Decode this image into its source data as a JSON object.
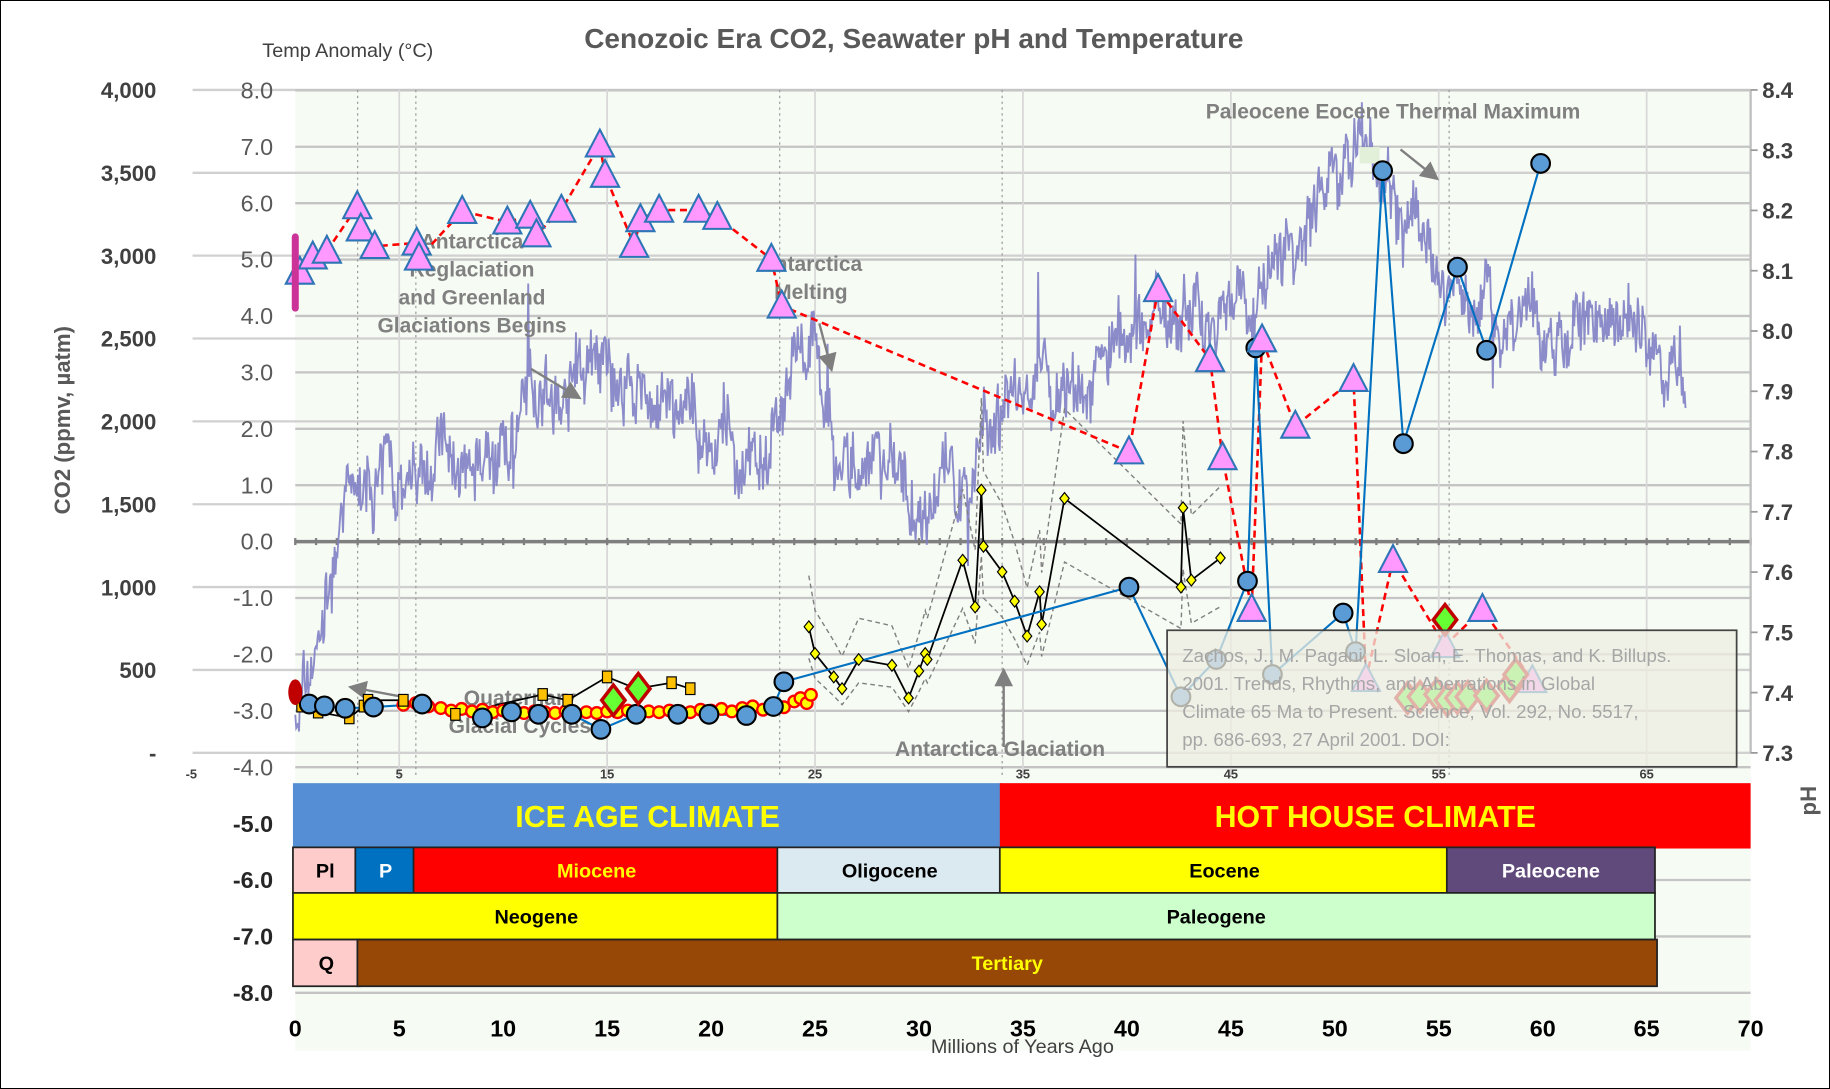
{
  "chart_data": {
    "type": "scatter",
    "title": "Cenozoic Era CO2, Seawater pH and Temperature",
    "xlabel": "Millions of Years Ago",
    "ylabel_left": "CO2 (ppmv, µatm)",
    "ylabel_temp": "Temp Anomaly (°C)",
    "ylabel_right": "pH",
    "xlim": [
      0,
      70
    ],
    "x_ticks": [
      "0",
      "5",
      "10",
      "15",
      "20",
      "25",
      "30",
      "35",
      "40",
      "45",
      "50",
      "55",
      "60",
      "65",
      "70"
    ],
    "x_secondary_ticks": [
      "-5",
      "5",
      "15",
      "25",
      "35",
      "45",
      "55",
      "65"
    ],
    "co2_lim": [
      0,
      4000
    ],
    "co2_ticks": [
      "-",
      "500",
      "1,000",
      "1,500",
      "2,000",
      "2,500",
      "3,000",
      "3,500",
      "4,000"
    ],
    "temp_lim": [
      -8,
      8
    ],
    "temp_ticks": [
      "8.0",
      "7.0",
      "6.0",
      "5.0",
      "4.0",
      "3.0",
      "2.0",
      "1.0",
      "0.0",
      "-1.0",
      "-2.0",
      "-3.0",
      "-4.0",
      "-5.0",
      "-6.0",
      "-7.0",
      "-8.0"
    ],
    "ph_lim": [
      7.3,
      8.4
    ],
    "ph_ticks": [
      "8.4",
      "8.3",
      "8.2",
      "8.1",
      "8.0",
      "7.9",
      "7.8",
      "7.7",
      "7.6",
      "7.5",
      "7.4",
      "7.3"
    ],
    "grid": true,
    "series": [
      {
        "name": "Temperature anomaly trend (Zachos)",
        "axis": "temp",
        "style": "noisy-line",
        "color": "#8080c4",
        "points": [
          [
            0,
            -3.2
          ],
          [
            0.95,
            -2.0
          ],
          [
            2.6,
            0.9
          ],
          [
            4.9,
            1.3
          ],
          [
            9.4,
            1.7
          ],
          [
            12.7,
            2.8
          ],
          [
            13.9,
            3.4
          ],
          [
            15.0,
            3.2
          ],
          [
            17.2,
            2.1
          ],
          [
            19.5,
            1.7
          ],
          [
            22.9,
            1.7
          ],
          [
            24.0,
            3.2
          ],
          [
            25.1,
            2.8
          ],
          [
            26.2,
            1.3
          ],
          [
            28.5,
            1.1
          ],
          [
            32.4,
            1.1
          ],
          [
            34.1,
            2.6
          ],
          [
            36.3,
            2.4
          ],
          [
            39.7,
            3.4
          ],
          [
            41.4,
            4.2
          ],
          [
            44.2,
            4.2
          ],
          [
            46.4,
            4.4
          ],
          [
            48.1,
            5.5
          ],
          [
            49.8,
            6.5
          ],
          [
            51.5,
            6.7
          ],
          [
            53.2,
            6.1
          ],
          [
            54.9,
            4.8
          ],
          [
            56.5,
            4.0
          ],
          [
            58.8,
            3.8
          ],
          [
            61.6,
            4.1
          ],
          [
            64.4,
            3.8
          ],
          [
            66.6,
            2.6
          ],
          [
            66.9,
            2.0
          ]
        ]
      },
      {
        "name": "CO2 proxy (triangles)",
        "axis": "co2",
        "style": "triangle-dashed",
        "color": "#ff99ff",
        "line": "#ff0000",
        "points": [
          [
            0.22,
            2901
          ],
          [
            0.84,
            2993
          ],
          [
            1.52,
            3028
          ],
          [
            2.98,
            3296
          ],
          [
            3.15,
            3162
          ],
          [
            3.82,
            3056
          ],
          [
            5.84,
            3077
          ],
          [
            5.95,
            2986
          ],
          [
            8.03,
            3268
          ],
          [
            10.2,
            3204
          ],
          [
            11.3,
            3239
          ],
          [
            11.6,
            3127
          ],
          [
            12.8,
            3275
          ],
          [
            14.65,
            3669
          ],
          [
            14.9,
            3486
          ],
          [
            16.3,
            3063
          ],
          [
            16.6,
            3218
          ],
          [
            17.5,
            3275
          ],
          [
            19.4,
            3275
          ],
          [
            20.3,
            3232
          ],
          [
            22.9,
            2979
          ],
          [
            23.4,
            2697
          ],
          [
            40.1,
            1817
          ],
          [
            41.5,
            2796
          ],
          [
            44.0,
            2373
          ],
          [
            44.6,
            1782
          ],
          [
            46.0,
            866
          ],
          [
            46.5,
            2493
          ],
          [
            48.1,
            1972
          ],
          [
            50.9,
            2254
          ],
          [
            51.5,
            444
          ],
          [
            52.8,
            1162
          ],
          [
            55.3,
            648
          ],
          [
            57.1,
            866
          ],
          [
            59.5,
            437
          ]
        ]
      },
      {
        "name": "Seawater pH (circles)",
        "axis": "ph",
        "style": "circle-line",
        "color": "#5b9bd5",
        "line": "#0070c0",
        "points": [
          [
            0.67,
            7.381
          ],
          [
            1.4,
            7.378
          ],
          [
            2.4,
            7.374
          ],
          [
            3.76,
            7.376
          ],
          [
            6.1,
            7.381
          ],
          [
            9.0,
            7.358
          ],
          [
            10.4,
            7.368
          ],
          [
            11.7,
            7.364
          ],
          [
            13.3,
            7.364
          ],
          [
            14.7,
            7.339
          ],
          [
            16.4,
            7.364
          ],
          [
            18.4,
            7.364
          ],
          [
            19.9,
            7.364
          ],
          [
            21.7,
            7.362
          ],
          [
            23.0,
            7.377
          ],
          [
            23.5,
            7.418
          ],
          [
            40.1,
            7.575
          ],
          [
            42.6,
            7.393
          ],
          [
            44.3,
            7.455
          ],
          [
            45.8,
            7.585
          ],
          [
            46.2,
            7.972
          ],
          [
            47.0,
            7.43
          ],
          [
            50.4,
            7.532
          ],
          [
            51.0,
            7.468
          ],
          [
            52.3,
            8.266
          ],
          [
            53.3,
            7.813
          ],
          [
            55.9,
            8.106
          ],
          [
            57.3,
            7.968
          ],
          [
            59.9,
            8.278
          ]
        ]
      },
      {
        "name": "CO2 proxy (yellow diamonds)",
        "axis": "co2",
        "style": "diamond-line-band",
        "color": "#ffff00",
        "line": "#000000",
        "points": [
          [
            24.7,
            761
          ],
          [
            25.0,
            599
          ],
          [
            25.9,
            458
          ],
          [
            26.3,
            387
          ],
          [
            27.1,
            563
          ],
          [
            28.7,
            528
          ],
          [
            29.5,
            331
          ],
          [
            30.0,
            493
          ],
          [
            30.3,
            599
          ],
          [
            30.4,
            563
          ],
          [
            32.1,
            1162
          ],
          [
            32.7,
            880
          ],
          [
            33.0,
            1585
          ],
          [
            33.1,
            1246
          ],
          [
            34.0,
            1092
          ],
          [
            34.6,
            915
          ],
          [
            35.2,
            704
          ],
          [
            35.8,
            972
          ],
          [
            35.9,
            775
          ],
          [
            37.0,
            1535
          ],
          [
            42.6,
            1000
          ],
          [
            42.7,
            1479
          ],
          [
            43.1,
            1042
          ],
          [
            44.5,
            1176
          ]
        ]
      },
      {
        "name": "CO2 proxy (orange squares)",
        "axis": "co2",
        "style": "square-line",
        "color": "#ffc000",
        "line": "#000000",
        "points": [
          [
            0.3,
            282
          ],
          [
            1.1,
            246
          ],
          [
            2.6,
            211
          ],
          [
            3.3,
            282
          ],
          [
            3.5,
            317
          ],
          [
            5.2,
            317
          ],
          [
            6.0,
            282
          ],
          [
            7.7,
            232
          ],
          [
            11.9,
            352
          ],
          [
            13.1,
            317
          ],
          [
            15.0,
            458
          ],
          [
            16.4,
            387
          ],
          [
            18.1,
            423
          ],
          [
            19.0,
            387
          ]
        ]
      },
      {
        "name": "CO2 proxy (red-ringed circles)",
        "axis": "co2",
        "style": "ring",
        "color": "#ffff00",
        "line": "#ff0000",
        "points": [
          [
            5.2,
            290
          ],
          [
            5.8,
            300
          ],
          [
            6.4,
            280
          ],
          [
            7.0,
            270
          ],
          [
            7.5,
            255
          ],
          [
            8.0,
            265
          ],
          [
            8.5,
            250
          ],
          [
            9.0,
            260
          ],
          [
            9.5,
            245
          ],
          [
            10.0,
            255
          ],
          [
            10.5,
            250
          ],
          [
            11.0,
            240
          ],
          [
            11.5,
            250
          ],
          [
            12.0,
            245
          ],
          [
            12.5,
            240
          ],
          [
            13.0,
            250
          ],
          [
            13.5,
            235
          ],
          [
            14.0,
            245
          ],
          [
            14.5,
            240
          ],
          [
            15.0,
            250
          ],
          [
            15.5,
            245
          ],
          [
            16.0,
            255
          ],
          [
            16.5,
            240
          ],
          [
            17.0,
            250
          ],
          [
            17.5,
            245
          ],
          [
            18.0,
            255
          ],
          [
            18.5,
            250
          ],
          [
            19.0,
            245
          ],
          [
            19.5,
            260
          ],
          [
            20.0,
            255
          ],
          [
            20.5,
            265
          ],
          [
            21.0,
            250
          ],
          [
            21.5,
            270
          ],
          [
            22.0,
            280
          ],
          [
            22.5,
            260
          ],
          [
            23.0,
            290
          ],
          [
            23.5,
            275
          ],
          [
            24.0,
            310
          ],
          [
            24.3,
            330
          ],
          [
            24.6,
            300
          ],
          [
            24.8,
            350
          ]
        ]
      },
      {
        "name": "CO2 proxy (green diamonds)",
        "axis": "co2",
        "style": "diamond",
        "color": "#66ff33",
        "line": "#c00000",
        "points": [
          [
            15.3,
            317
          ],
          [
            16.5,
            387
          ],
          [
            55.3,
            803
          ],
          [
            53.5,
            331
          ],
          [
            54.1,
            338
          ],
          [
            54.9,
            352
          ],
          [
            55.4,
            317
          ],
          [
            55.9,
            331
          ],
          [
            56.4,
            338
          ],
          [
            57.3,
            345
          ],
          [
            58.4,
            401
          ],
          [
            58.7,
            472
          ]
        ]
      },
      {
        "name": "Present CO2 range",
        "axis": "co2",
        "style": "vbar",
        "color": "#cc3399",
        "points": [
          [
            0,
            2683
          ],
          [
            0,
            3113
          ]
        ]
      },
      {
        "name": "Present CO2",
        "axis": "co2",
        "style": "ellipse",
        "color": "#c00000",
        "points": [
          [
            0,
            366
          ]
        ]
      }
    ],
    "annotations": [
      {
        "lines": [
          "Antarctica",
          "Reglaciation",
          "and Greenland",
          "Glaciations Begins"
        ],
        "at": [
          8.5,
          5.2
        ]
      },
      {
        "lines": [
          "Antarctica",
          "Melting"
        ],
        "at": [
          24.8,
          4.8
        ]
      },
      {
        "lines": [
          "Paleocene Eocene Thermal Maximum"
        ],
        "at": [
          52.8,
          7.5
        ]
      },
      {
        "lines": [
          "Quaternary",
          "Glacial Cycles"
        ],
        "at": [
          10.8,
          -2.9
        ]
      },
      {
        "lines": [
          "Antarctica Glaciation"
        ],
        "at": [
          33.9,
          -3.8
        ]
      }
    ],
    "citation": [
      "Zachos, J., M. Pagani, L. Sloan, E. Thomas, and K. Billups.",
      "2001. Trends, Rhythms, and Aberrations in Global",
      "Climate 65 Ma to Present. Science, Vol. 292, No. 5517,",
      "pp. 686-693, 27 April 2001. DOI:"
    ],
    "timescale": {
      "climate": [
        {
          "label": "ICE AGE CLIMATE",
          "from": 0,
          "to": 34,
          "color": "#558ed5",
          "text": "#ffff00"
        },
        {
          "label": "HOT HOUSE CLIMATE",
          "from": 34,
          "to": 70,
          "color": "#ff0000",
          "text": "#ffff00"
        }
      ],
      "epochs": [
        {
          "label": "Pl",
          "from": 0,
          "to": 3,
          "color": "#ffcccc",
          "text": "#000000"
        },
        {
          "label": "P",
          "from": 3,
          "to": 5.8,
          "color": "#0070c0",
          "text": "#ffffff"
        },
        {
          "label": "Miocene",
          "from": 5.8,
          "to": 23.3,
          "color": "#ff0000",
          "text": "#ffff00"
        },
        {
          "label": "Oligocene",
          "from": 23.3,
          "to": 34,
          "color": "#dbe9f1",
          "text": "#000000"
        },
        {
          "label": "Eocene",
          "from": 34,
          "to": 55.5,
          "color": "#ffff00",
          "text": "#000000"
        },
        {
          "label": "Paleocene",
          "from": 55.5,
          "to": 65.4,
          "color": "#604a7b",
          "text": "#ffffff"
        }
      ],
      "periods": [
        {
          "label": "Neogene",
          "from": 0,
          "to": 23.3,
          "color": "#ffff00",
          "text": "#000000"
        },
        {
          "label": "Paleogene",
          "from": 23.3,
          "to": 65.4,
          "color": "#ccffcc",
          "text": "#000000"
        }
      ],
      "eras": [
        {
          "label": "Q",
          "from": 0,
          "to": 3.1,
          "color": "#ffcccc",
          "text": "#000000"
        },
        {
          "label": "Tertiary",
          "from": 3.1,
          "to": 65.5,
          "color": "#974706",
          "text": "#ffff00"
        }
      ]
    }
  }
}
